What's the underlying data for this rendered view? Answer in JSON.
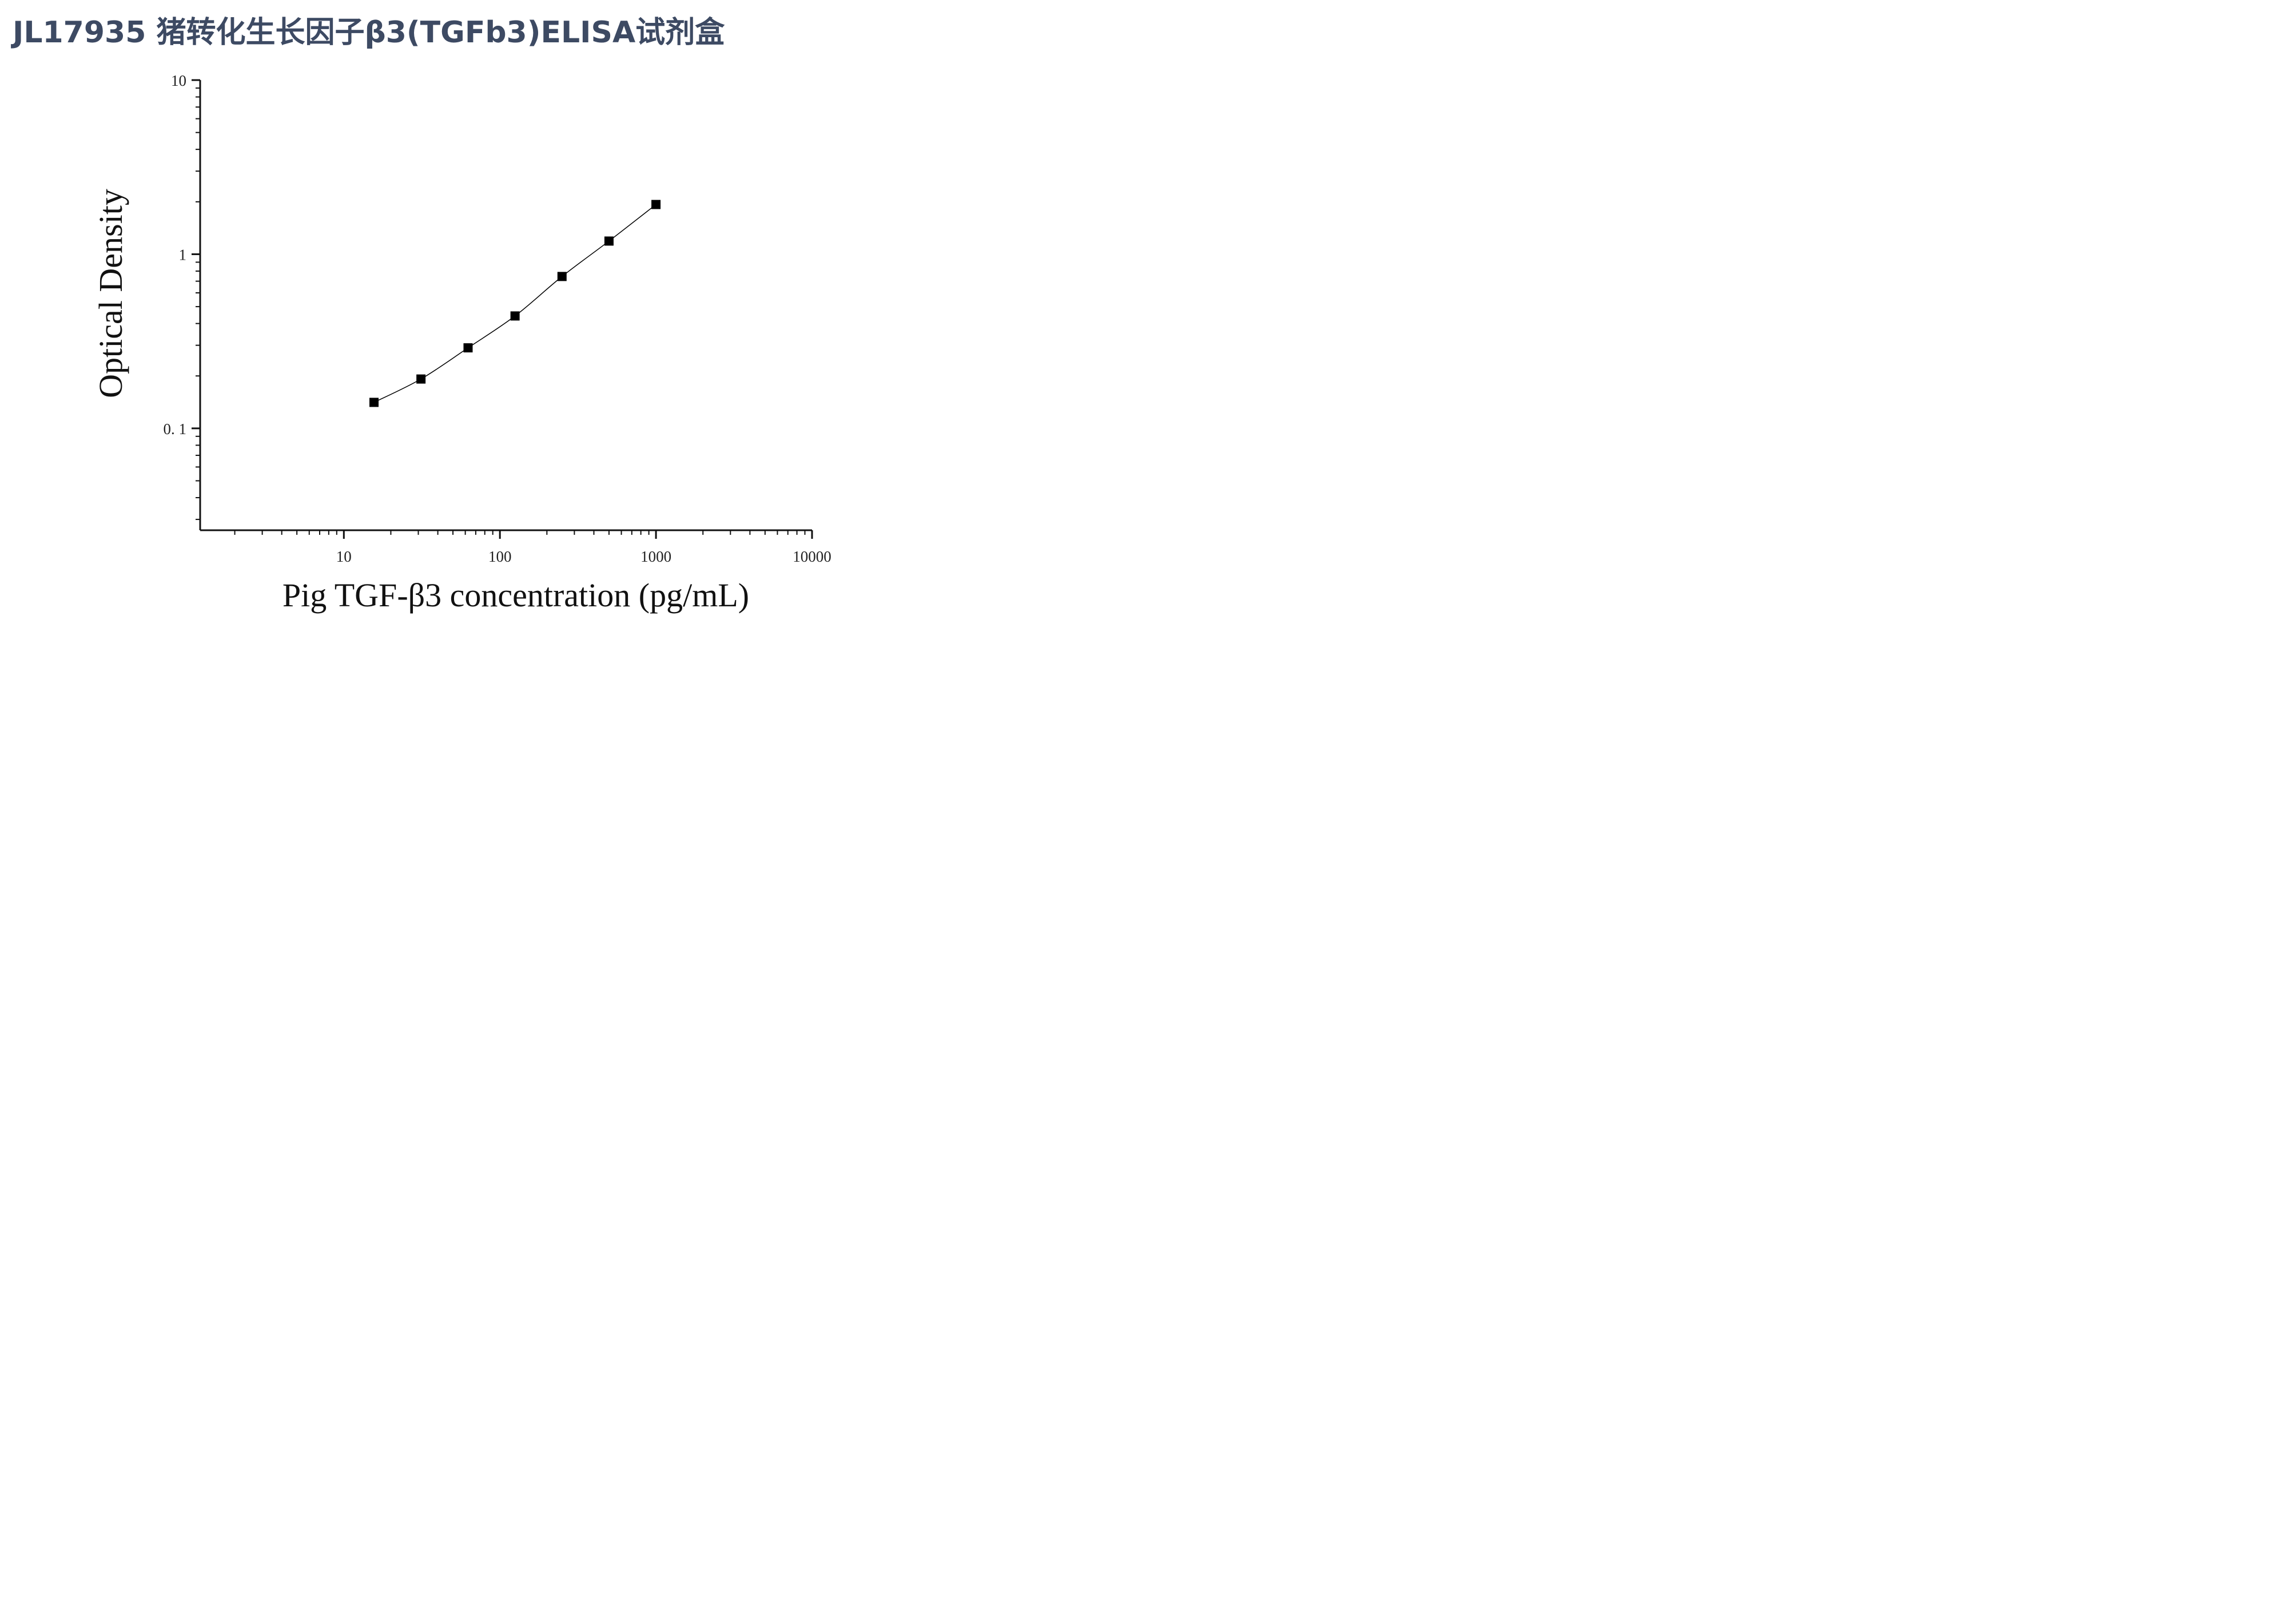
{
  "title": "JL17935 猪转化生长因子β3(TGFb3)ELISA试剂盒",
  "chart_data": {
    "type": "scatter",
    "title": "JL17935 猪转化生长因子β3(TGFb3)ELISA试剂盒",
    "xlabel": "Pig TGF-β3 concentration (pg/mL)",
    "ylabel": "Optical Density",
    "x_scale": "log",
    "y_scale": "log",
    "xlim": [
      1.2,
      10000
    ],
    "ylim": [
      0.026,
      10
    ],
    "x_ticks": [
      10,
      100,
      1000,
      10000
    ],
    "x_tick_labels": [
      "10",
      "100",
      "1000",
      "10000"
    ],
    "y_ticks": [
      0.1,
      1,
      10
    ],
    "y_tick_labels": [
      "0. 1",
      "1",
      "10"
    ],
    "grid": false,
    "marker": "square",
    "fit_line": true,
    "color": "#000000",
    "series": [
      {
        "x": [
          15.6,
          31.2,
          62.5,
          125,
          250,
          500,
          1000
        ],
        "y": [
          0.141,
          0.192,
          0.29,
          0.442,
          0.745,
          1.19,
          1.93
        ]
      }
    ]
  }
}
